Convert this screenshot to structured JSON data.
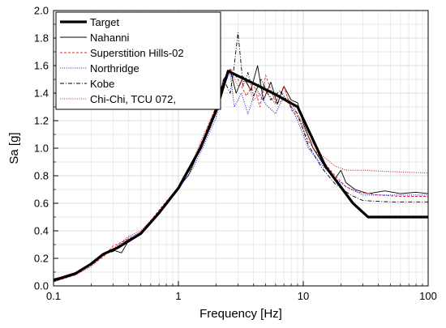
{
  "chart_data": {
    "type": "line",
    "title": "",
    "xlabel": "Frequency [Hz]",
    "ylabel": "Sa [g]",
    "xscale": "log",
    "xlim": [
      0.1,
      100
    ],
    "ylim": [
      0.0,
      2.0
    ],
    "x_ticks": [
      "0.1",
      "1",
      "10",
      "100"
    ],
    "y_ticks": [
      "0.0",
      "0.2",
      "0.4",
      "0.6",
      "0.8",
      "1.0",
      "1.2",
      "1.4",
      "1.6",
      "1.8",
      "2.0"
    ],
    "grid": true,
    "legend_position": "top-left",
    "series": [
      {
        "name": "Target",
        "color": "#000000",
        "style": "solid-thick",
        "points": [
          [
            0.1,
            0.04
          ],
          [
            0.15,
            0.09
          ],
          [
            0.2,
            0.16
          ],
          [
            0.25,
            0.23
          ],
          [
            0.33,
            0.28
          ],
          [
            0.5,
            0.38
          ],
          [
            0.7,
            0.53
          ],
          [
            1.0,
            0.71
          ],
          [
            1.5,
            1.0
          ],
          [
            2.0,
            1.27
          ],
          [
            2.5,
            1.56
          ],
          [
            4.0,
            1.47
          ],
          [
            6.0,
            1.39
          ],
          [
            9.0,
            1.3
          ],
          [
            15.0,
            0.87
          ],
          [
            25.0,
            0.6
          ],
          [
            33.0,
            0.5
          ],
          [
            100.0,
            0.5
          ]
        ]
      },
      {
        "name": "Nahanni",
        "color": "#000000",
        "style": "solid-thin",
        "points": [
          [
            0.1,
            0.05
          ],
          [
            0.15,
            0.09
          ],
          [
            0.2,
            0.16
          ],
          [
            0.25,
            0.23
          ],
          [
            0.3,
            0.26
          ],
          [
            0.35,
            0.24
          ],
          [
            0.4,
            0.33
          ],
          [
            0.5,
            0.38
          ],
          [
            0.7,
            0.52
          ],
          [
            1.0,
            0.72
          ],
          [
            1.2,
            0.8
          ],
          [
            1.5,
            1.0
          ],
          [
            1.8,
            1.15
          ],
          [
            2.0,
            1.27
          ],
          [
            2.3,
            1.5
          ],
          [
            2.6,
            1.57
          ],
          [
            2.9,
            1.4
          ],
          [
            3.3,
            1.52
          ],
          [
            3.8,
            1.42
          ],
          [
            4.3,
            1.6
          ],
          [
            4.8,
            1.35
          ],
          [
            5.5,
            1.48
          ],
          [
            6.2,
            1.32
          ],
          [
            7.0,
            1.45
          ],
          [
            8.0,
            1.35
          ],
          [
            9.0,
            1.33
          ],
          [
            10.0,
            1.18
          ],
          [
            12.0,
            1.0
          ],
          [
            15.0,
            0.86
          ],
          [
            18.0,
            0.78
          ],
          [
            20.0,
            0.84
          ],
          [
            22.0,
            0.75
          ],
          [
            26.0,
            0.7
          ],
          [
            33.0,
            0.67
          ],
          [
            45.0,
            0.69
          ],
          [
            60.0,
            0.67
          ],
          [
            80.0,
            0.68
          ],
          [
            100.0,
            0.67
          ]
        ]
      },
      {
        "name": "Superstition Hills-02",
        "color": "#e02020",
        "style": "dashed",
        "points": [
          [
            0.1,
            0.03
          ],
          [
            0.15,
            0.08
          ],
          [
            0.2,
            0.15
          ],
          [
            0.25,
            0.21
          ],
          [
            0.3,
            0.29
          ],
          [
            0.4,
            0.34
          ],
          [
            0.5,
            0.38
          ],
          [
            0.7,
            0.55
          ],
          [
            1.0,
            0.72
          ],
          [
            1.3,
            0.9
          ],
          [
            1.6,
            1.08
          ],
          [
            1.8,
            1.2
          ],
          [
            2.0,
            1.3
          ],
          [
            2.3,
            1.48
          ],
          [
            2.6,
            1.58
          ],
          [
            3.0,
            1.5
          ],
          [
            3.5,
            1.38
          ],
          [
            4.0,
            1.47
          ],
          [
            4.5,
            1.3
          ],
          [
            5.0,
            1.53
          ],
          [
            6.0,
            1.33
          ],
          [
            7.0,
            1.45
          ],
          [
            8.0,
            1.28
          ],
          [
            9.0,
            1.23
          ],
          [
            11.0,
            1.05
          ],
          [
            14.0,
            0.92
          ],
          [
            18.0,
            0.8
          ],
          [
            22.0,
            0.72
          ],
          [
            28.0,
            0.68
          ],
          [
            40.0,
            0.66
          ],
          [
            60.0,
            0.65
          ],
          [
            100.0,
            0.65
          ]
        ]
      },
      {
        "name": "Northridge",
        "color": "#2020d0",
        "style": "dotted",
        "points": [
          [
            0.1,
            0.04
          ],
          [
            0.15,
            0.09
          ],
          [
            0.2,
            0.16
          ],
          [
            0.25,
            0.23
          ],
          [
            0.3,
            0.26
          ],
          [
            0.4,
            0.35
          ],
          [
            0.5,
            0.39
          ],
          [
            0.7,
            0.53
          ],
          [
            1.0,
            0.7
          ],
          [
            1.3,
            0.85
          ],
          [
            1.6,
            1.02
          ],
          [
            2.0,
            1.22
          ],
          [
            2.3,
            1.45
          ],
          [
            2.6,
            1.55
          ],
          [
            2.8,
            1.3
          ],
          [
            3.2,
            1.4
          ],
          [
            3.6,
            1.25
          ],
          [
            4.2,
            1.43
          ],
          [
            5.0,
            1.32
          ],
          [
            6.0,
            1.25
          ],
          [
            7.0,
            1.38
          ],
          [
            8.0,
            1.3
          ],
          [
            9.0,
            1.2
          ],
          [
            11.0,
            1.0
          ],
          [
            14.0,
            0.88
          ],
          [
            18.0,
            0.78
          ],
          [
            22.0,
            0.72
          ],
          [
            30.0,
            0.66
          ],
          [
            50.0,
            0.66
          ],
          [
            100.0,
            0.66
          ]
        ]
      },
      {
        "name": "Kobe",
        "color": "#000000",
        "style": "dash-dot",
        "points": [
          [
            0.1,
            0.04
          ],
          [
            0.15,
            0.09
          ],
          [
            0.2,
            0.16
          ],
          [
            0.25,
            0.23
          ],
          [
            0.3,
            0.25
          ],
          [
            0.4,
            0.34
          ],
          [
            0.5,
            0.38
          ],
          [
            0.7,
            0.52
          ],
          [
            1.0,
            0.7
          ],
          [
            1.3,
            0.88
          ],
          [
            1.6,
            1.05
          ],
          [
            2.0,
            1.3
          ],
          [
            2.3,
            1.5
          ],
          [
            2.6,
            1.4
          ],
          [
            2.8,
            1.6
          ],
          [
            3.0,
            1.84
          ],
          [
            3.3,
            1.45
          ],
          [
            3.6,
            1.55
          ],
          [
            4.0,
            1.38
          ],
          [
            4.6,
            1.5
          ],
          [
            5.5,
            1.35
          ],
          [
            6.5,
            1.42
          ],
          [
            8.0,
            1.3
          ],
          [
            9.0,
            1.25
          ],
          [
            11.0,
            1.02
          ],
          [
            14.0,
            0.86
          ],
          [
            18.0,
            0.74
          ],
          [
            24.0,
            0.66
          ],
          [
            30.0,
            0.62
          ],
          [
            50.0,
            0.61
          ],
          [
            100.0,
            0.61
          ]
        ]
      },
      {
        "name": "Chi-Chi, TCU 072,",
        "color": "#c02020",
        "style": "dotted",
        "points": [
          [
            0.1,
            0.03
          ],
          [
            0.15,
            0.08
          ],
          [
            0.2,
            0.14
          ],
          [
            0.25,
            0.22
          ],
          [
            0.3,
            0.27
          ],
          [
            0.4,
            0.36
          ],
          [
            0.5,
            0.4
          ],
          [
            0.7,
            0.54
          ],
          [
            1.0,
            0.72
          ],
          [
            1.3,
            0.9
          ],
          [
            1.6,
            1.1
          ],
          [
            2.0,
            1.3
          ],
          [
            2.3,
            1.46
          ],
          [
            2.6,
            1.57
          ],
          [
            3.0,
            1.45
          ],
          [
            3.5,
            1.5
          ],
          [
            4.0,
            1.35
          ],
          [
            5.0,
            1.42
          ],
          [
            6.0,
            1.32
          ],
          [
            7.5,
            1.37
          ],
          [
            9.0,
            1.25
          ],
          [
            11.0,
            1.08
          ],
          [
            14.0,
            0.95
          ],
          [
            18.0,
            0.87
          ],
          [
            22.0,
            0.84
          ],
          [
            30.0,
            0.84
          ],
          [
            50.0,
            0.83
          ],
          [
            100.0,
            0.82
          ]
        ]
      }
    ]
  }
}
